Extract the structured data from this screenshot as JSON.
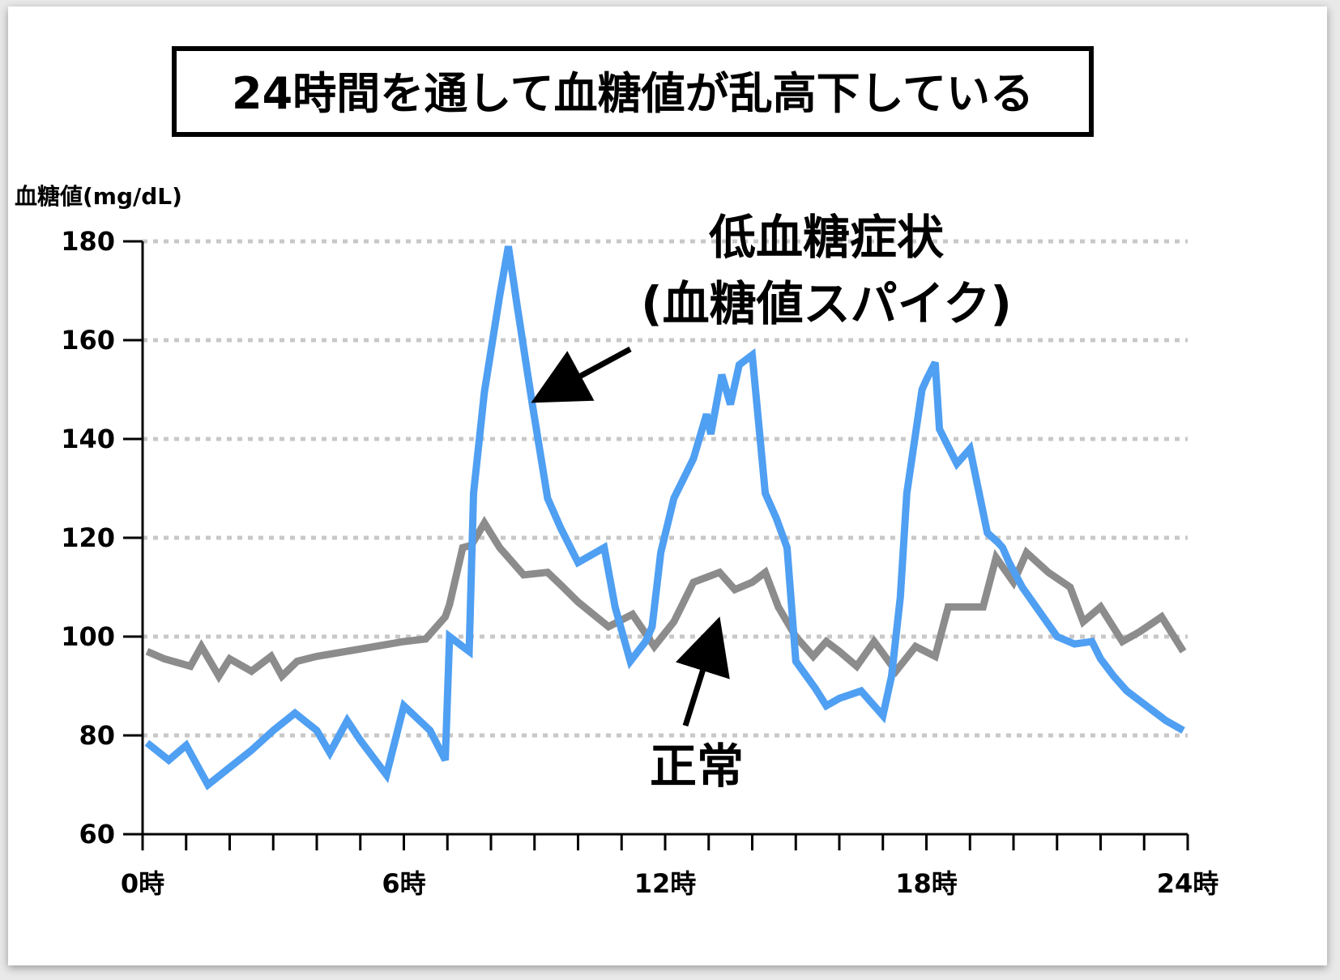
{
  "title": "24時間を通して血糖値が乱高下している",
  "chart_data": {
    "type": "line",
    "ylabel": "血糖値(mg/dL)",
    "ylim": [
      60,
      180
    ],
    "yticks": [
      "60",
      "80",
      "100",
      "120",
      "140",
      "160",
      "180"
    ],
    "xlim": [
      0,
      24
    ],
    "xticks": [
      {
        "value": 0,
        "label": "0時"
      },
      {
        "value": 6,
        "label": "6時"
      },
      {
        "value": 12,
        "label": "12時"
      },
      {
        "value": 18,
        "label": "18時"
      },
      {
        "value": 24,
        "label": "24時"
      }
    ],
    "grid": "horizontal dotted",
    "series": [
      {
        "name": "正常",
        "color": "#8c8c8c",
        "x": [
          0.1,
          0.5,
          1.1,
          1.35,
          1.75,
          2.0,
          2.5,
          2.95,
          3.2,
          3.55,
          4.0,
          5.0,
          6.0,
          6.5,
          6.95,
          7.05,
          7.35,
          7.55,
          7.85,
          8.2,
          8.75,
          9.3,
          9.6,
          10.0,
          10.7,
          11.25,
          11.75,
          12.2,
          12.65,
          12.95,
          13.25,
          13.6,
          14.0,
          14.3,
          14.6,
          15.0,
          15.4,
          15.7,
          16.0,
          16.4,
          16.8,
          17.3,
          17.75,
          18.2,
          18.5,
          18.95,
          19.3,
          19.6,
          20.0,
          20.3,
          20.8,
          21.3,
          21.6,
          22.0,
          22.5,
          22.9,
          23.4,
          23.9
        ],
        "values": [
          97,
          95.5,
          94,
          98,
          92,
          95.5,
          93,
          96,
          92,
          95,
          96,
          97.5,
          99,
          99.5,
          104,
          106.5,
          118,
          118.5,
          123,
          118,
          112.5,
          113,
          110.5,
          107,
          102,
          104.5,
          98,
          103,
          111,
          112,
          113,
          109.5,
          111,
          113,
          106,
          100,
          96,
          99,
          97,
          94,
          99,
          93,
          98,
          96,
          106,
          106,
          106,
          116,
          111,
          117,
          113,
          110,
          103,
          106,
          99,
          101,
          104,
          97
        ]
      },
      {
        "name": "低血糖症状(血糖値スパイク)",
        "color": "#4f9ff2",
        "x": [
          0.1,
          0.6,
          1.0,
          1.5,
          2.0,
          2.5,
          3.0,
          3.5,
          4.0,
          4.3,
          4.7,
          5.0,
          5.6,
          6.0,
          6.6,
          6.95,
          7.05,
          7.5,
          7.6,
          7.85,
          8.2,
          8.4,
          8.6,
          8.95,
          9.3,
          9.6,
          10.0,
          10.6,
          10.85,
          11.2,
          11.55,
          11.7,
          11.9,
          12.2,
          12.65,
          12.95,
          13.05,
          13.3,
          13.5,
          13.7,
          14.0,
          14.3,
          14.55,
          14.8,
          15.0,
          15.45,
          15.7,
          16.0,
          16.5,
          17.0,
          17.2,
          17.4,
          17.55,
          17.9,
          18.0,
          18.2,
          18.3,
          18.7,
          19.0,
          19.4,
          19.65,
          19.75,
          19.9,
          20.2,
          20.6,
          21.0,
          21.4,
          21.8,
          22.0,
          22.3,
          22.6,
          22.9,
          23.2,
          23.5,
          23.9
        ],
        "values": [
          78.5,
          75,
          78,
          70,
          73.5,
          77,
          81,
          84.5,
          81,
          76.5,
          83,
          79,
          72,
          86,
          81,
          75,
          100,
          97,
          129,
          149.5,
          169,
          179,
          167,
          147,
          128,
          122,
          115,
          118,
          106,
          95,
          99,
          102,
          117,
          128,
          136,
          145,
          141,
          153,
          147,
          155,
          157,
          129,
          124,
          118,
          95,
          89.5,
          86,
          87.5,
          89,
          84,
          92,
          108,
          129,
          150,
          152,
          155.5,
          142,
          135,
          138,
          121,
          119,
          118,
          115,
          110,
          105,
          100,
          98.5,
          99,
          95.5,
          92,
          89,
          87,
          85,
          83,
          81
        ]
      }
    ],
    "annotations": [
      {
        "label": "低血糖症状",
        "label2": "(血糖値スパイク)",
        "target_series": 1
      },
      {
        "label": "正常",
        "target_series": 0
      }
    ]
  }
}
